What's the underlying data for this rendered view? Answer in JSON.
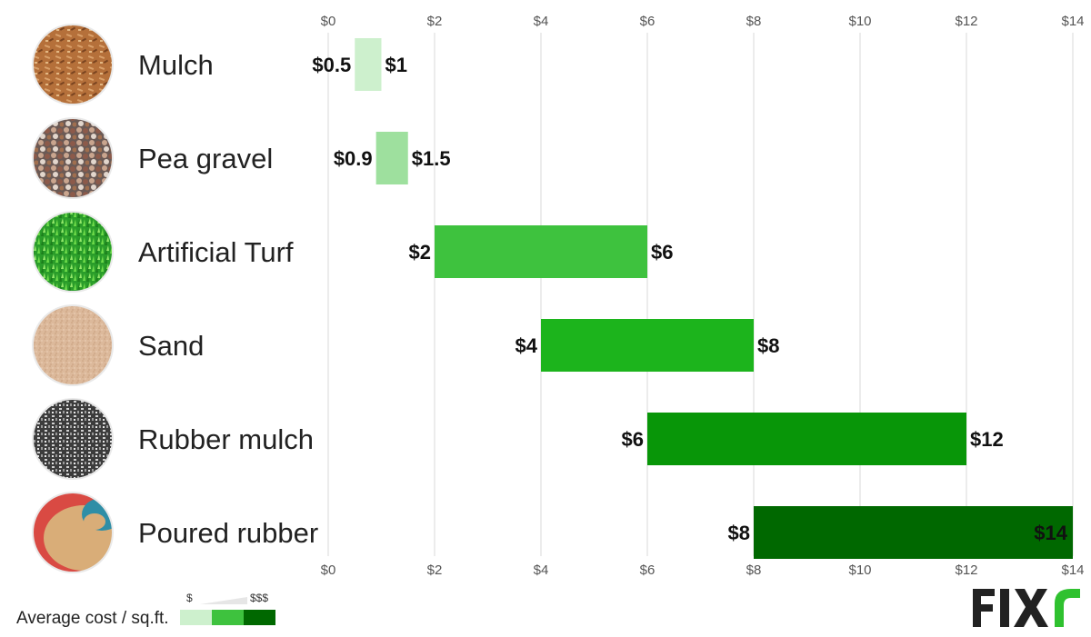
{
  "chart_data": {
    "type": "bar",
    "orientation": "horizontal-range",
    "categories": [
      "Mulch",
      "Pea gravel",
      "Artificial Turf",
      "Sand",
      "Rubber mulch",
      "Poured rubber"
    ],
    "series": [
      {
        "low": 0.5,
        "high": 1,
        "low_label": "$0.5",
        "high_label": "$1",
        "color": "#cdf0cd"
      },
      {
        "low": 0.9,
        "high": 1.5,
        "low_label": "$0.9",
        "high_label": "$1.5",
        "color": "#9ee09e"
      },
      {
        "low": 2,
        "high": 6,
        "low_label": "$2",
        "high_label": "$6",
        "color": "#3ec23e"
      },
      {
        "low": 4,
        "high": 8,
        "low_label": "$4",
        "high_label": "$8",
        "color": "#1cb41c"
      },
      {
        "low": 6,
        "high": 12,
        "low_label": "$6",
        "high_label": "$12",
        "color": "#089608"
      },
      {
        "low": 8,
        "high": 14,
        "low_label": "$8",
        "high_label": "$14",
        "color": "#006800"
      }
    ],
    "xlim": [
      0,
      14
    ],
    "xticks": [
      0,
      2,
      4,
      6,
      8,
      10,
      12,
      14
    ],
    "xtick_labels": [
      "$0",
      "$2",
      "$4",
      "$6",
      "$8",
      "$10",
      "$12",
      "$14"
    ],
    "grid": true,
    "xaxis_position": "top-and-bottom",
    "title": "",
    "xlabel": "",
    "ylabel": ""
  },
  "icons": [
    "mulch-texture-icon",
    "pea-gravel-texture-icon",
    "artificial-turf-texture-icon",
    "sand-texture-icon",
    "rubber-mulch-texture-icon",
    "poured-rubber-texture-icon"
  ],
  "legend": {
    "title": "Average cost / sq.ft.",
    "low_symbol": "$",
    "high_symbol": "$$$",
    "colors": [
      "#cdf0cd",
      "#3ec23e",
      "#006800"
    ]
  },
  "logo": {
    "text": "FIXr",
    "text_color": "#222222",
    "accent_color": "#2fc12f"
  }
}
